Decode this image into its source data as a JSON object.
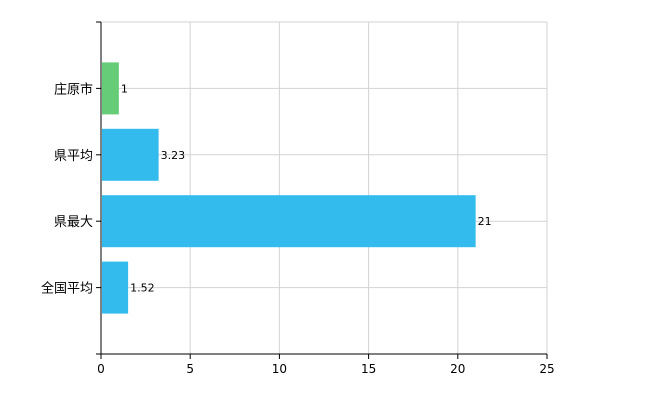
{
  "chart_data": {
    "type": "bar",
    "orientation": "horizontal",
    "categories": [
      "庄原市",
      "県平均",
      "県最大",
      "全国平均"
    ],
    "values": [
      1,
      3.23,
      21,
      1.52
    ],
    "data_labels": [
      "1",
      "3.23",
      "21",
      "1.52"
    ],
    "bar_colors": [
      "#66cc77",
      "#33bbee",
      "#33bbee",
      "#33bbee"
    ],
    "xlim": [
      0,
      25
    ],
    "x_ticks": [
      0,
      5,
      10,
      15,
      20,
      25
    ],
    "x_tick_labels": [
      "0",
      "5",
      "10",
      "15",
      "20",
      "25"
    ],
    "grid": true,
    "title": "",
    "xlabel": "",
    "ylabel": ""
  }
}
